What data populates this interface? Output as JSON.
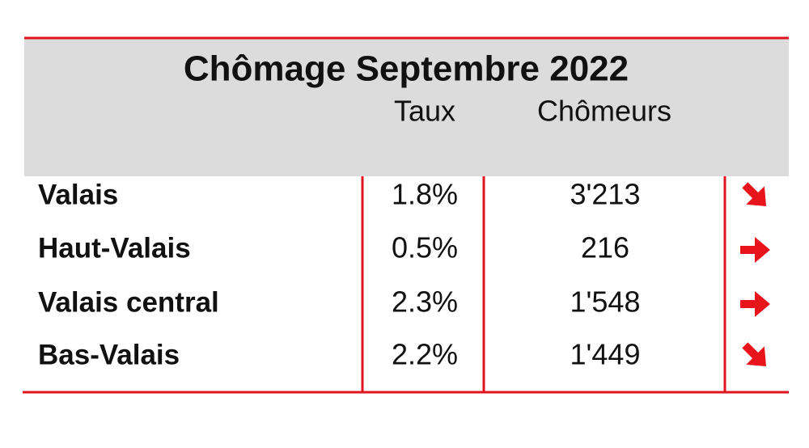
{
  "table": {
    "title": "Chômage Septembre 2022",
    "columns": [
      "Taux",
      "Chômeurs"
    ],
    "rows": [
      [
        "Valais",
        "1.8%",
        "3'213"
      ],
      [
        "Haut-Valais",
        "0.5%",
        "216"
      ],
      [
        "Valais central",
        "2.3%",
        "1'548"
      ],
      [
        "Bas-Valais",
        "2.2%",
        "1'449"
      ]
    ]
  }
}
